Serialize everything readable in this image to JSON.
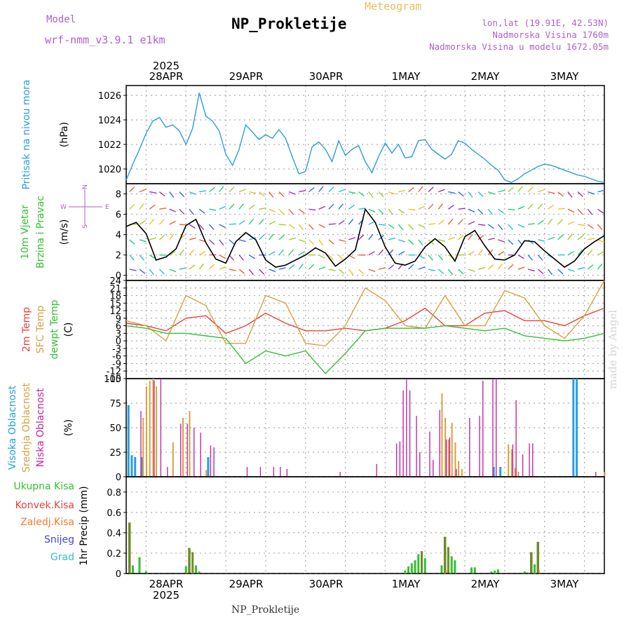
{
  "header": {
    "model_label": "Model",
    "model_name": "wrf-nmm_v3.9.1  e1km",
    "meteogram_label": "Meteogram",
    "station": "NP_Prokletije",
    "loc_line1": "lon,lat (19.91E, 42.53N)",
    "loc_line2": "Nadmorska Visina 1760m",
    "loc_line3": "Nadmorska Visina u modelu 1672.05m",
    "footer_station": "NP_Prokletije",
    "credit": "made by Angel"
  },
  "colors": {
    "pressure": "#2a9ee0",
    "t2m": "#e8413c",
    "sfc": "#d9a040",
    "dew": "#33c033",
    "cloud_high": "#2a9ee0",
    "cloud_mid": "#d9a040",
    "cloud_low": "#c02aa0",
    "precip_total": "#33c033",
    "precip_conv": "#e8413c",
    "precip_frozen": "#f07a30",
    "snow": "#4444dd",
    "hail": "#33c0c0"
  },
  "time_axis": {
    "year": "2025",
    "days": [
      "28APR",
      "29APR",
      "30APR",
      "1MAY",
      "2MAY",
      "3MAY"
    ]
  },
  "chart_data": [
    {
      "type": "line",
      "panel": "pressure",
      "ylabel": "Pritisak na nivou mora",
      "unit": "(hPa)",
      "yticks": [
        1020,
        1022,
        1024,
        1026
      ],
      "ylim": [
        1018.8,
        1026.8
      ],
      "xlim_hours": [
        0,
        144
      ],
      "series": [
        {
          "x": [
            0,
            2,
            4,
            6,
            8,
            10,
            12,
            14,
            16,
            18,
            20,
            22,
            24,
            26,
            28,
            30,
            32,
            34,
            36,
            38,
            40,
            42,
            44,
            46,
            48,
            50,
            52,
            54,
            56,
            58,
            60,
            62,
            64,
            66,
            68,
            70,
            72,
            74,
            76,
            78,
            80,
            82,
            84,
            86,
            88,
            90,
            92,
            94,
            96,
            98,
            100,
            102,
            104,
            106,
            108,
            110,
            112,
            114,
            116,
            118,
            120,
            122,
            124,
            126,
            128,
            130,
            132,
            134,
            136,
            138,
            140,
            142,
            144
          ],
          "y": [
            1019.1,
            1020.4,
            1021.6,
            1022.9,
            1023.9,
            1024.2,
            1023.4,
            1023.6,
            1023.1,
            1022.0,
            1023.3,
            1026.2,
            1024.3,
            1023.9,
            1023.1,
            1021.2,
            1020.3,
            1021.6,
            1023.6,
            1023.0,
            1022.4,
            1022.8,
            1022.5,
            1023.2,
            1022.5,
            1021.0,
            1019.6,
            1019.8,
            1021.8,
            1022.2,
            1021.6,
            1020.6,
            1022.3,
            1021.1,
            1021.6,
            1021.9,
            1020.6,
            1019.7,
            1021.0,
            1022.1,
            1021.3,
            1022.0,
            1020.9,
            1021.0,
            1022.3,
            1022.4,
            1021.6,
            1021.2,
            1020.8,
            1021.2,
            1022.3,
            1022.1,
            1021.6,
            1021.2,
            1020.8,
            1020.3,
            1019.9,
            1019.1,
            1018.9,
            1019.2,
            1019.6,
            1019.9,
            1020.2,
            1020.4,
            1020.3,
            1020.1,
            1019.9,
            1019.7,
            1019.5,
            1019.4,
            1019.2,
            1019.0,
            1018.9
          ]
        }
      ]
    },
    {
      "type": "line",
      "panel": "wind",
      "ylabel": "10m Vjetar Brzina i Pravac",
      "unit": "(m/s)",
      "compass_labels": [
        "W",
        "E",
        "S",
        "N"
      ],
      "yticks": [
        0,
        2,
        4,
        6,
        8
      ],
      "ylim": [
        -0.5,
        9
      ],
      "series": [
        {
          "name": "speed",
          "x": [
            0,
            3,
            6,
            9,
            12,
            15,
            18,
            21,
            24,
            27,
            30,
            33,
            36,
            39,
            42,
            45,
            48,
            51,
            54,
            57,
            60,
            63,
            66,
            69,
            72,
            75,
            78,
            81,
            84,
            87,
            90,
            93,
            96,
            99,
            102,
            105,
            108,
            111,
            114,
            117,
            120,
            123,
            126,
            129,
            132,
            135,
            138,
            141,
            144
          ],
          "y": [
            4.8,
            5.2,
            4.1,
            1.5,
            1.8,
            2.6,
            4.9,
            5.5,
            3.2,
            1.6,
            1.2,
            3.3,
            4.2,
            3.5,
            1.5,
            0.8,
            1.0,
            1.5,
            2.0,
            2.7,
            2.2,
            0.9,
            1.6,
            2.5,
            6.5,
            5.2,
            2.8,
            1.2,
            1.0,
            1.4,
            2.8,
            3.6,
            2.8,
            1.4,
            3.8,
            4.4,
            2.9,
            1.6,
            1.5,
            2.0,
            3.4,
            3.3,
            2.4,
            1.6,
            0.8,
            1.4,
            2.6,
            3.3,
            3.9
          ]
        }
      ]
    },
    {
      "type": "line",
      "panel": "temperature",
      "ylabel_series": [
        "2m Temp",
        "SFC Temp",
        "dewpt Temp"
      ],
      "unit": "(C)",
      "yticks": [
        -15,
        -12,
        -9,
        -6,
        -3,
        0,
        3,
        6,
        9,
        12,
        15,
        18,
        21,
        24
      ],
      "ylim": [
        -15,
        24
      ],
      "series": [
        {
          "name": "2m Temp",
          "x": [
            0,
            6,
            12,
            18,
            24,
            30,
            36,
            42,
            48,
            54,
            60,
            66,
            72,
            78,
            84,
            90,
            96,
            102,
            108,
            114,
            120,
            126,
            132,
            138,
            144
          ],
          "y": [
            7,
            6,
            4,
            9,
            10,
            3,
            6,
            11,
            7,
            4,
            4,
            5,
            4,
            5,
            8,
            13,
            6,
            6,
            11,
            12,
            8,
            8,
            6,
            10,
            13
          ]
        },
        {
          "name": "SFC Temp",
          "x": [
            0,
            6,
            12,
            18,
            24,
            30,
            36,
            42,
            48,
            54,
            60,
            66,
            72,
            78,
            84,
            90,
            96,
            102,
            108,
            114,
            120,
            126,
            132,
            138,
            144
          ],
          "y": [
            8,
            6,
            0,
            18,
            14,
            -1,
            -1,
            18,
            15,
            -1,
            -2,
            6,
            21,
            16,
            6,
            5,
            18,
            6,
            6,
            20,
            17,
            6,
            1,
            10,
            24
          ]
        },
        {
          "name": "dewpt Temp",
          "x": [
            0,
            6,
            12,
            18,
            24,
            30,
            36,
            42,
            48,
            54,
            60,
            66,
            72,
            78,
            84,
            90,
            96,
            102,
            108,
            114,
            120,
            126,
            132,
            138,
            144
          ],
          "y": [
            6,
            5,
            3,
            3,
            2,
            1,
            -9,
            -4,
            -6,
            -4,
            -13,
            -5,
            4,
            5,
            5,
            5,
            6,
            5,
            4,
            5,
            2,
            1,
            0,
            1,
            3
          ]
        }
      ]
    },
    {
      "type": "bar",
      "panel": "cloud",
      "ylabel_series": [
        "Visoka Oblacnost",
        "Srednja Oblacnost",
        "Niska Oblacnost"
      ],
      "unit": "(%)",
      "yticks": [
        0,
        25,
        50,
        75,
        100
      ],
      "ylim": [
        0,
        100
      ],
      "series": [
        {
          "name": "Visoka Oblacnost",
          "x": [
            1,
            2,
            3,
            5,
            25,
            111,
            113,
            135,
            136
          ],
          "values": [
            73,
            22,
            20,
            20,
            20,
            10,
            10,
            100,
            100
          ]
        },
        {
          "name": "Srednja Oblacnost",
          "x": [
            5,
            6,
            7,
            8,
            9,
            14,
            17,
            19,
            24,
            95,
            96,
            97,
            98,
            99,
            100,
            101,
            115,
            116,
            117,
            118,
            144
          ],
          "values": [
            60,
            92,
            98,
            100,
            92,
            35,
            60,
            67,
            7,
            85,
            60,
            38,
            55,
            35,
            16,
            8,
            33,
            28,
            9,
            5,
            5
          ]
        },
        {
          "name": "Niska Oblacnost",
          "x": [
            4,
            8,
            10,
            12,
            16,
            18,
            20,
            22,
            25,
            26,
            36,
            40,
            44,
            46,
            48,
            64,
            75,
            81,
            82,
            83,
            84,
            85,
            87,
            88,
            91,
            92,
            94,
            96,
            97,
            99,
            103,
            106,
            107,
            110,
            111,
            116,
            117,
            119,
            121,
            122,
            141
          ],
          "values": [
            67,
            98,
            99,
            10,
            54,
            54,
            50,
            45,
            32,
            30,
            10,
            10,
            10,
            10,
            8,
            5,
            13,
            34,
            36,
            88,
            99,
            88,
            62,
            25,
            46,
            17,
            68,
            38,
            40,
            8,
            60,
            62,
            98,
            99,
            100,
            33,
            78,
            23,
            34,
            34,
            5
          ]
        }
      ]
    },
    {
      "type": "bar",
      "panel": "precip",
      "ylabel_series": [
        "Ukupna Kisa",
        "Konvek.Kisa",
        "Zaledj.Kisa",
        "Snijeg",
        "Grad"
      ],
      "unit": "1hr Precip (mm)",
      "yticks": [
        0,
        0.2,
        0.4,
        0.6,
        0.8
      ],
      "ylim": [
        0,
        0.95
      ],
      "series": [
        {
          "name": "Ukupna Kisa",
          "x": [
            1,
            2,
            4,
            6,
            18,
            19,
            20,
            21,
            22,
            84,
            85,
            86,
            87,
            88,
            89,
            90,
            95,
            96,
            97,
            98,
            99,
            104,
            105,
            110,
            111,
            112,
            120,
            121,
            122,
            123,
            124
          ],
          "values": [
            0.5,
            0.08,
            0.16,
            0.02,
            0.07,
            0.25,
            0.21,
            0.08,
            0.02,
            0.03,
            0.07,
            0.1,
            0.13,
            0.19,
            0.22,
            0.15,
            0.08,
            0.36,
            0.26,
            0.17,
            0.13,
            0.06,
            0.06,
            0.02,
            0.03,
            0.04,
            0.02,
            0.01,
            0.21,
            0.09,
            0.31
          ]
        },
        {
          "name": "Konvek.Kisa",
          "x": [
            1,
            19,
            96,
            122,
            124
          ],
          "values": [
            0.5,
            0.25,
            0.36,
            0.21,
            0.31
          ]
        },
        {
          "name": "Zaledj.Kisa",
          "x": [
            96,
            124
          ],
          "values": [
            0.03,
            0.03
          ]
        }
      ]
    }
  ]
}
